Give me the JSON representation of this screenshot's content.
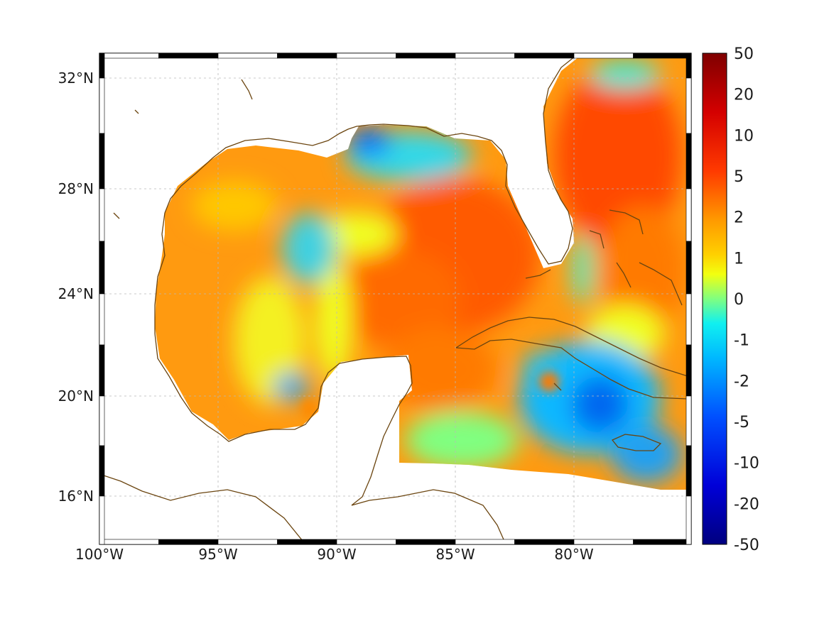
{
  "map": {
    "region": "Gulf of Mexico and western Caribbean",
    "lon_range": [
      -100,
      -75
    ],
    "lat_range": [
      14,
      33
    ],
    "colormap": "jet",
    "grid": true,
    "land_color": "#ffffff",
    "coastline_color": "#5a3a0a",
    "x_tick_labels": [
      "100°W",
      "95°W",
      "90°W",
      "85°W",
      "80°W"
    ],
    "y_tick_labels": [
      "32°N",
      "28°N",
      "24°N",
      "20°N",
      "16°N"
    ]
  },
  "colorbar": {
    "tick_labels": [
      "50",
      "20",
      "10",
      "5",
      "2",
      "1",
      "0",
      "-1",
      "-2",
      "-5",
      "-10",
      "-20",
      "-50"
    ],
    "min": -50,
    "max": 50
  }
}
